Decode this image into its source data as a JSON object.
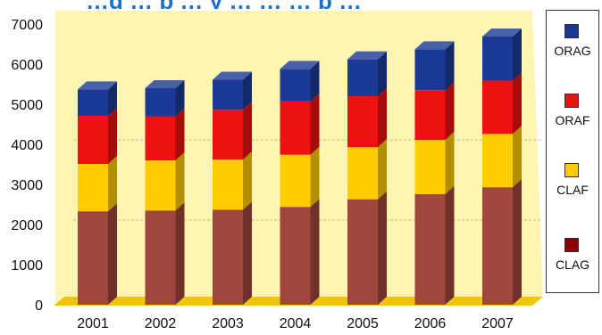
{
  "chart_data": {
    "type": "bar",
    "stacked": true,
    "title": "…g … p … y … … … p …",
    "categories": [
      "2001",
      "2002",
      "2003",
      "2004",
      "2005",
      "2006",
      "2007"
    ],
    "series": [
      {
        "name": "CLAG",
        "color": "#a0463c",
        "values": [
          2330,
          2350,
          2370,
          2440,
          2630,
          2760,
          2930
        ]
      },
      {
        "name": "CLAF",
        "color": "#ffcc00",
        "values": [
          1180,
          1250,
          1250,
          1300,
          1300,
          1350,
          1330
        ]
      },
      {
        "name": "ORAF",
        "color": "#ee1111",
        "values": [
          1200,
          1100,
          1240,
          1330,
          1270,
          1240,
          1330
        ]
      },
      {
        "name": "ORAG",
        "color": "#1b3a96",
        "values": [
          660,
          700,
          750,
          810,
          920,
          1020,
          1100
        ]
      }
    ],
    "ylim": [
      0,
      7000
    ],
    "yticks": [
      "0",
      "1000",
      "2000",
      "3000",
      "4000",
      "5000",
      "6000",
      "7000"
    ],
    "legend": {
      "placement": "right",
      "items": [
        {
          "label": "ORAG",
          "color": "#1b3a96"
        },
        {
          "label": "ORAF",
          "color": "#ee1111"
        },
        {
          "label": "CLAF",
          "color": "#ffcc00"
        },
        {
          "label": "CLAG",
          "color": "#8b0000"
        }
      ]
    },
    "grid": true,
    "background_color": "#fff5b3",
    "floor_color": "#f2c500"
  }
}
